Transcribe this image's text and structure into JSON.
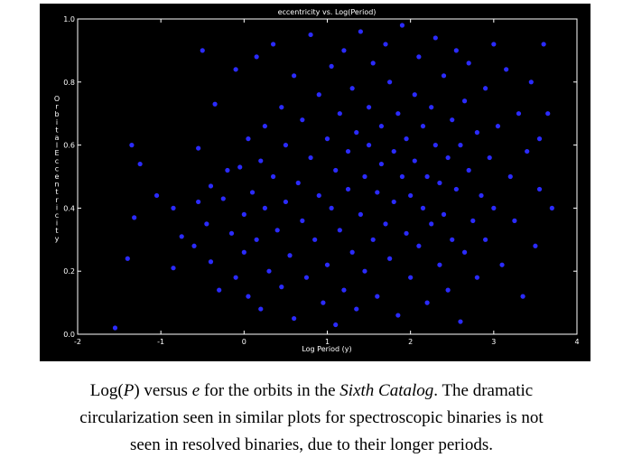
{
  "chart_data": {
    "type": "scatter",
    "title": "eccentricity vs. Log(Period)",
    "xlabel": "Log Period (y)",
    "ylabel": "Orbital Eccentricity",
    "xlim": [
      -2,
      4
    ],
    "ylim": [
      0.0,
      1.0
    ],
    "xticks": [
      "-2",
      "-1",
      "0",
      "1",
      "2",
      "3",
      "4"
    ],
    "yticks": [
      "0.0",
      "0.2",
      "0.4",
      "0.6",
      "0.8",
      "1.0"
    ],
    "grid": false,
    "background": "#000000",
    "point_color": "#2b2bff",
    "axis_color": "#ffffff",
    "series": [
      {
        "points": [
          [
            -1.55,
            0.02
          ],
          [
            -1.4,
            0.24
          ],
          [
            -1.35,
            0.6
          ],
          [
            -1.32,
            0.37
          ],
          [
            -1.25,
            0.54
          ],
          [
            -1.05,
            0.44
          ],
          [
            -0.85,
            0.4
          ],
          [
            -0.85,
            0.21
          ],
          [
            -0.75,
            0.31
          ],
          [
            -0.6,
            0.28
          ],
          [
            -0.55,
            0.59
          ],
          [
            -0.55,
            0.42
          ],
          [
            -0.5,
            0.9
          ],
          [
            -0.45,
            0.35
          ],
          [
            -0.4,
            0.47
          ],
          [
            -0.4,
            0.23
          ],
          [
            -0.35,
            0.73
          ],
          [
            -0.3,
            0.14
          ],
          [
            -0.25,
            0.43
          ],
          [
            -0.2,
            0.52
          ],
          [
            -0.15,
            0.32
          ],
          [
            -0.1,
            0.18
          ],
          [
            -0.1,
            0.84
          ],
          [
            -0.05,
            0.53
          ],
          [
            0.0,
            0.38
          ],
          [
            0.0,
            0.26
          ],
          [
            0.05,
            0.62
          ],
          [
            0.05,
            0.12
          ],
          [
            0.1,
            0.45
          ],
          [
            0.15,
            0.88
          ],
          [
            0.15,
            0.3
          ],
          [
            0.2,
            0.55
          ],
          [
            0.2,
            0.08
          ],
          [
            0.25,
            0.66
          ],
          [
            0.25,
            0.4
          ],
          [
            0.3,
            0.2
          ],
          [
            0.35,
            0.92
          ],
          [
            0.35,
            0.5
          ],
          [
            0.4,
            0.33
          ],
          [
            0.45,
            0.72
          ],
          [
            0.45,
            0.15
          ],
          [
            0.5,
            0.6
          ],
          [
            0.5,
            0.42
          ],
          [
            0.55,
            0.25
          ],
          [
            0.6,
            0.82
          ],
          [
            0.6,
            0.05
          ],
          [
            0.65,
            0.48
          ],
          [
            0.7,
            0.36
          ],
          [
            0.7,
            0.68
          ],
          [
            0.75,
            0.18
          ],
          [
            0.8,
            0.56
          ],
          [
            0.8,
            0.95
          ],
          [
            0.85,
            0.3
          ],
          [
            0.9,
            0.44
          ],
          [
            0.9,
            0.76
          ],
          [
            0.95,
            0.1
          ],
          [
            1.0,
            0.62
          ],
          [
            1.0,
            0.22
          ],
          [
            1.05,
            0.85
          ],
          [
            1.05,
            0.4
          ],
          [
            1.1,
            0.52
          ],
          [
            1.1,
            0.03
          ],
          [
            1.15,
            0.7
          ],
          [
            1.15,
            0.33
          ],
          [
            1.2,
            0.9
          ],
          [
            1.2,
            0.14
          ],
          [
            1.25,
            0.58
          ],
          [
            1.25,
            0.46
          ],
          [
            1.3,
            0.26
          ],
          [
            1.3,
            0.78
          ],
          [
            1.35,
            0.64
          ],
          [
            1.35,
            0.08
          ],
          [
            1.4,
            0.38
          ],
          [
            1.4,
            0.96
          ],
          [
            1.45,
            0.5
          ],
          [
            1.45,
            0.2
          ],
          [
            1.5,
            0.72
          ],
          [
            1.5,
            0.6
          ],
          [
            1.55,
            0.3
          ],
          [
            1.55,
            0.86
          ],
          [
            1.6,
            0.45
          ],
          [
            1.6,
            0.12
          ],
          [
            1.65,
            0.66
          ],
          [
            1.65,
            0.54
          ],
          [
            1.7,
            0.35
          ],
          [
            1.7,
            0.92
          ],
          [
            1.75,
            0.24
          ],
          [
            1.75,
            0.8
          ],
          [
            1.8,
            0.58
          ],
          [
            1.8,
            0.42
          ],
          [
            1.85,
            0.7
          ],
          [
            1.85,
            0.06
          ],
          [
            1.9,
            0.5
          ],
          [
            1.9,
            0.98
          ],
          [
            1.95,
            0.32
          ],
          [
            1.95,
            0.62
          ],
          [
            2.0,
            0.44
          ],
          [
            2.0,
            0.18
          ],
          [
            2.05,
            0.76
          ],
          [
            2.05,
            0.55
          ],
          [
            2.1,
            0.28
          ],
          [
            2.1,
            0.88
          ],
          [
            2.15,
            0.66
          ],
          [
            2.15,
            0.4
          ],
          [
            2.2,
            0.5
          ],
          [
            2.2,
            0.1
          ],
          [
            2.25,
            0.72
          ],
          [
            2.25,
            0.35
          ],
          [
            2.3,
            0.6
          ],
          [
            2.3,
            0.94
          ],
          [
            2.35,
            0.22
          ],
          [
            2.35,
            0.48
          ],
          [
            2.4,
            0.82
          ],
          [
            2.4,
            0.38
          ],
          [
            2.45,
            0.56
          ],
          [
            2.45,
            0.14
          ],
          [
            2.5,
            0.68
          ],
          [
            2.5,
            0.3
          ],
          [
            2.55,
            0.9
          ],
          [
            2.55,
            0.46
          ],
          [
            2.6,
            0.6
          ],
          [
            2.6,
            0.04
          ],
          [
            2.65,
            0.74
          ],
          [
            2.65,
            0.26
          ],
          [
            2.7,
            0.52
          ],
          [
            2.7,
            0.86
          ],
          [
            2.75,
            0.36
          ],
          [
            2.8,
            0.64
          ],
          [
            2.8,
            0.18
          ],
          [
            2.85,
            0.44
          ],
          [
            2.9,
            0.78
          ],
          [
            2.9,
            0.3
          ],
          [
            2.95,
            0.56
          ],
          [
            3.0,
            0.92
          ],
          [
            3.0,
            0.4
          ],
          [
            3.05,
            0.66
          ],
          [
            3.1,
            0.22
          ],
          [
            3.15,
            0.84
          ],
          [
            3.2,
            0.5
          ],
          [
            3.25,
            0.36
          ],
          [
            3.3,
            0.7
          ],
          [
            3.35,
            0.12
          ],
          [
            3.4,
            0.58
          ],
          [
            3.45,
            0.8
          ],
          [
            3.5,
            0.28
          ],
          [
            3.55,
            0.46
          ],
          [
            3.6,
            0.92
          ],
          [
            3.65,
            0.7
          ],
          [
            3.7,
            0.4
          ],
          [
            3.55,
            0.62
          ]
        ]
      }
    ]
  },
  "caption": {
    "pre1": "Log(",
    "em1": "P",
    "mid1": ") versus ",
    "em2": "e",
    "mid2": " for the orbits in the ",
    "em3": "Sixth Catalog",
    "post1": ". The dramatic",
    "line2": "circularization seen in similar plots for spectroscopic binaries is not",
    "line3": "seen in resolved binaries, due to their longer periods."
  }
}
